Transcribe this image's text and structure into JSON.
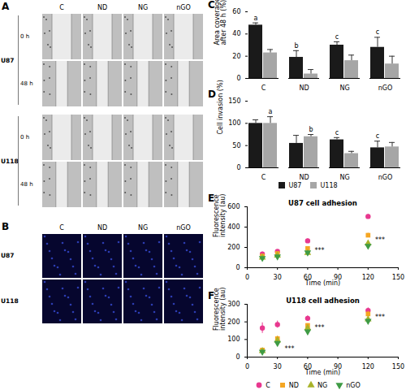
{
  "image_panels": [
    {
      "panel_label": "A",
      "columns": [
        "C",
        "ND",
        "NG",
        "nGO"
      ],
      "groups": [
        {
          "name": "U87",
          "rows": [
            "0 h",
            "48 h"
          ]
        },
        {
          "name": "U118",
          "rows": [
            "0 h",
            "48 h"
          ]
        }
      ]
    },
    {
      "panel_label": "B",
      "columns": [
        "C",
        "ND",
        "NG",
        "nGO"
      ],
      "rows": [
        "U87",
        "U118"
      ]
    }
  ],
  "chart_data": [
    {
      "panel_label": "C",
      "type": "bar",
      "ylabel": "Area coverage after 48 h (%)",
      "categories": [
        "C",
        "ND",
        "NG",
        "nGO"
      ],
      "series": [
        {
          "name": "U87",
          "color": "#1a1a1a",
          "values": [
            48,
            19,
            30,
            28
          ],
          "errors": [
            2,
            6,
            3,
            9
          ]
        },
        {
          "name": "U118",
          "color": "#a6a6a6",
          "values": [
            23,
            4,
            16,
            13
          ],
          "errors": [
            3,
            4,
            5,
            7
          ]
        }
      ],
      "ylim": [
        0,
        60
      ],
      "yticks": [
        0,
        20,
        40,
        60
      ],
      "annotations": [
        {
          "category": "C",
          "text": "a"
        },
        {
          "category": "ND",
          "text": "b"
        },
        {
          "category": "NG",
          "text": "c"
        },
        {
          "category": "nGO",
          "text": "c"
        }
      ]
    },
    {
      "panel_label": "D",
      "type": "bar",
      "ylabel": "Cell invasion (%)",
      "categories": [
        "C",
        "ND",
        "NG",
        "nGO"
      ],
      "series": [
        {
          "name": "U87",
          "color": "#1a1a1a",
          "values": [
            100,
            55,
            63,
            45
          ],
          "errors": [
            8,
            18,
            5,
            15
          ]
        },
        {
          "name": "U118",
          "color": "#a6a6a6",
          "values": [
            100,
            70,
            32,
            47
          ],
          "errors": [
            15,
            5,
            5,
            10
          ]
        }
      ],
      "ylim": [
        0,
        150
      ],
      "yticks": [
        0,
        50,
        100,
        150
      ],
      "legend": "bottom",
      "annotations": [
        {
          "category": "C",
          "text": "a"
        },
        {
          "category": "ND",
          "text": "b"
        },
        {
          "category": "NG",
          "text": "c"
        },
        {
          "category": "nGO",
          "text": "c"
        }
      ]
    },
    {
      "panel_label": "E",
      "type": "scatter",
      "title": "U87 cell adhesion",
      "xlabel": "Time (min)",
      "ylabel": "Fluorescence intensity (au)",
      "x": [
        15,
        30,
        60,
        120
      ],
      "series": [
        {
          "name": "C",
          "color": "#e8388f",
          "marker": "circle",
          "values": [
            135,
            160,
            265,
            505
          ],
          "errors": [
            20,
            15,
            20,
            20
          ]
        },
        {
          "name": "ND",
          "color": "#f5a623",
          "marker": "square",
          "values": [
            115,
            140,
            190,
            320
          ],
          "errors": [
            15,
            10,
            15,
            20
          ]
        },
        {
          "name": "NG",
          "color": "#a8b32a",
          "marker": "triangle",
          "values": [
            100,
            120,
            145,
            240
          ],
          "errors": [
            10,
            10,
            10,
            15
          ]
        },
        {
          "name": "nGO",
          "color": "#3f9b45",
          "marker": "triangle-down",
          "values": [
            95,
            110,
            150,
            215
          ],
          "errors": [
            10,
            10,
            10,
            15
          ]
        }
      ],
      "xlim": [
        0,
        150
      ],
      "xticks": [
        0,
        30,
        60,
        90,
        120,
        150
      ],
      "ylim": [
        0,
        600
      ],
      "yticks": [
        0,
        200,
        400,
        600
      ],
      "annotations": [
        {
          "x": 67,
          "y": 170,
          "text": "***"
        },
        {
          "x": 127,
          "y": 270,
          "text": "***"
        }
      ]
    },
    {
      "panel_label": "F",
      "type": "scatter",
      "title": "U118 cell adhesion",
      "xlabel": "Time (min)",
      "ylabel": "Fluorescence intensity (au)",
      "x": [
        15,
        30,
        60,
        120
      ],
      "series": [
        {
          "name": "C",
          "color": "#e8388f",
          "marker": "circle",
          "values": [
            165,
            185,
            220,
            265
          ],
          "errors": [
            30,
            20,
            15,
            15
          ]
        },
        {
          "name": "ND",
          "color": "#f5a623",
          "marker": "square",
          "values": [
            40,
            105,
            180,
            245
          ],
          "errors": [
            10,
            15,
            10,
            15
          ]
        },
        {
          "name": "NG",
          "color": "#a8b32a",
          "marker": "triangle",
          "values": [
            35,
            95,
            165,
            215
          ],
          "errors": [
            10,
            10,
            10,
            10
          ]
        },
        {
          "name": "nGO",
          "color": "#3f9b45",
          "marker": "triangle-down",
          "values": [
            30,
            80,
            145,
            205
          ],
          "errors": [
            10,
            10,
            10,
            10
          ]
        }
      ],
      "xlim": [
        0,
        150
      ],
      "xticks": [
        0,
        30,
        60,
        90,
        120,
        150
      ],
      "ylim": [
        0,
        300
      ],
      "yticks": [
        0,
        100,
        200,
        300
      ],
      "legend": "bottom",
      "annotations": [
        {
          "x": 37,
          "y": 45,
          "text": "***"
        },
        {
          "x": 67,
          "y": 165,
          "text": "***"
        },
        {
          "x": 127,
          "y": 225,
          "text": "***"
        }
      ]
    }
  ]
}
